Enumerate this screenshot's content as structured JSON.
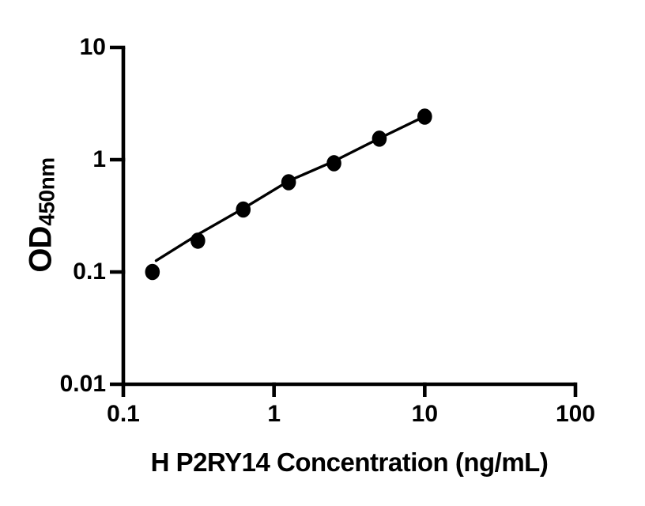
{
  "chart_data": {
    "type": "scatter",
    "title": "",
    "xlabel": "H P2RY14 Concentration (ng/mL)",
    "ylabel_main": "OD",
    "ylabel_sub": "450nm",
    "x_scale": "log",
    "y_scale": "log",
    "xlim": [
      0.1,
      100
    ],
    "ylim": [
      0.01,
      10
    ],
    "grid": false,
    "legend": false,
    "x_ticks": [
      {
        "value": 0.1,
        "label": "0.1"
      },
      {
        "value": 1,
        "label": "1"
      },
      {
        "value": 10,
        "label": "10"
      },
      {
        "value": 100,
        "label": "100"
      }
    ],
    "y_ticks": [
      {
        "value": 0.01,
        "label": "0.01"
      },
      {
        "value": 0.1,
        "label": "0.1"
      },
      {
        "value": 1,
        "label": "1"
      },
      {
        "value": 10,
        "label": "10"
      }
    ],
    "series": [
      {
        "name": "standard-curve-points",
        "type": "scatter",
        "marker": "filled-circle",
        "color": "#000000",
        "x": [
          0.156,
          0.3125,
          0.625,
          1.25,
          2.5,
          5,
          10
        ],
        "y": [
          0.1,
          0.19,
          0.36,
          0.63,
          0.93,
          1.54,
          2.42
        ]
      },
      {
        "name": "fit-line",
        "type": "line",
        "color": "#000000",
        "x": [
          0.165,
          0.32,
          0.63,
          1.26,
          2.5,
          5,
          10
        ],
        "y": [
          0.126,
          0.22,
          0.37,
          0.65,
          0.97,
          1.55,
          2.43
        ]
      }
    ],
    "colors": {
      "foreground": "#000000",
      "background": "#ffffff"
    }
  }
}
